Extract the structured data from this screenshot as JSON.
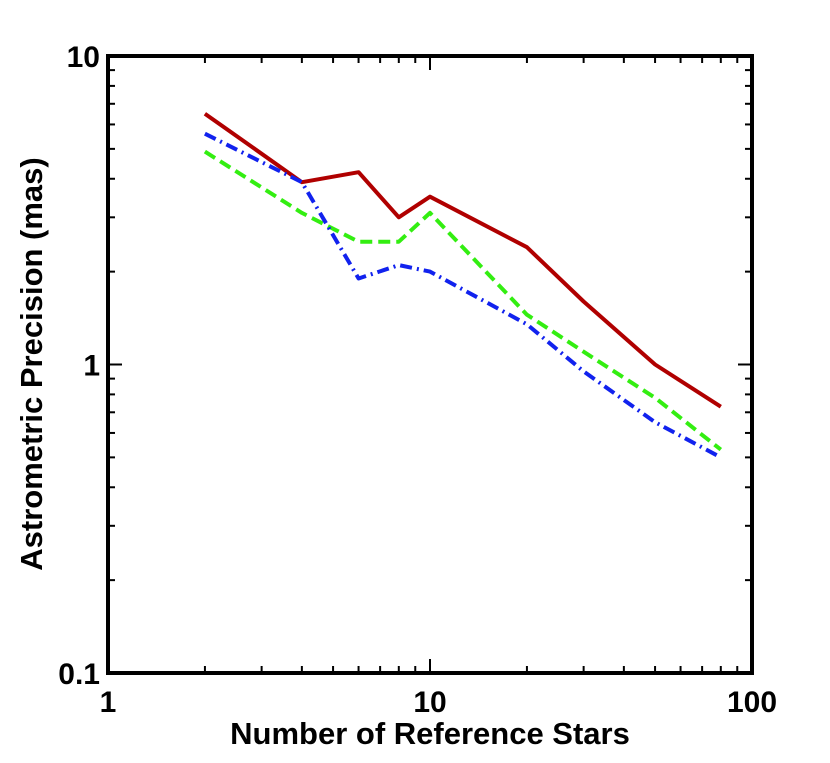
{
  "chart_data": {
    "type": "line",
    "title": "",
    "xlabel": "Number of Reference Stars",
    "ylabel": "Astrometric Precision (mas)",
    "xscale": "log",
    "yscale": "log",
    "xlim": [
      1,
      100
    ],
    "ylim": [
      0.1,
      10
    ],
    "xticks": [
      1,
      10,
      100
    ],
    "yticks": [
      0.1,
      1,
      10
    ],
    "xtick_labels": [
      "1",
      "10",
      "100"
    ],
    "ytick_labels": [
      "0.1",
      "1",
      "10"
    ],
    "grid": false,
    "legend": "none",
    "series": [
      {
        "style": "solid",
        "color": "#b00000",
        "x": [
          2,
          4,
          6,
          8,
          10,
          20,
          30,
          50,
          80
        ],
        "y": [
          6.5,
          3.9,
          4.2,
          3.0,
          3.5,
          2.4,
          1.6,
          1.0,
          0.73
        ]
      },
      {
        "style": "dashed",
        "color": "#33ee11",
        "x": [
          2,
          4,
          6,
          8,
          10,
          20,
          30,
          50,
          80
        ],
        "y": [
          4.9,
          3.1,
          2.5,
          2.5,
          3.1,
          1.45,
          1.1,
          0.78,
          0.53
        ]
      },
      {
        "style": "dash-dot",
        "color": "#1122ee",
        "x": [
          2,
          4,
          6,
          8,
          10,
          20,
          30,
          50,
          80
        ],
        "y": [
          5.6,
          3.9,
          1.9,
          2.1,
          2.0,
          1.35,
          0.95,
          0.65,
          0.5
        ]
      }
    ]
  }
}
